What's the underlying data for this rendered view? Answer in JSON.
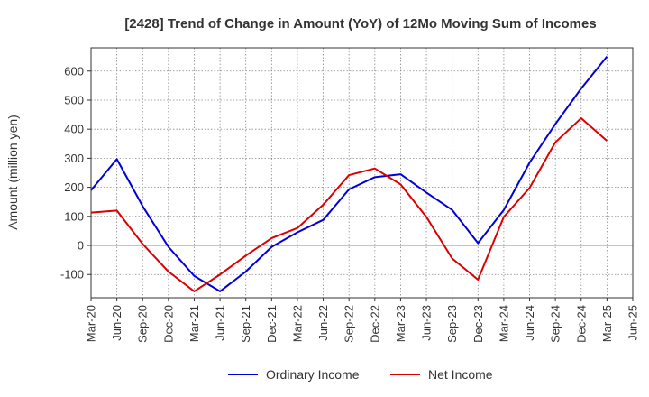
{
  "chart_data": {
    "type": "line",
    "title": "[2428]  Trend of Change in Amount (YoY) of 12Mo Moving Sum of Incomes",
    "xlabel": "",
    "ylabel": "Amount (million yen)",
    "ylim": [
      -180,
      680
    ],
    "yticks": [
      -100,
      0,
      100,
      200,
      300,
      400,
      500,
      600
    ],
    "grid": true,
    "legend_position": "bottom",
    "x": [
      "Mar-20",
      "Jun-20",
      "Sep-20",
      "Dec-20",
      "Mar-21",
      "Jun-21",
      "Sep-21",
      "Dec-21",
      "Mar-22",
      "Jun-22",
      "Sep-22",
      "Dec-22",
      "Mar-23",
      "Jun-23",
      "Sep-23",
      "Dec-23",
      "Mar-24",
      "Jun-24",
      "Sep-24",
      "Dec-24",
      "Mar-25",
      "Jun-25"
    ],
    "series": [
      {
        "name": "Ordinary Income",
        "color": "#0000dd",
        "values": [
          190,
          297,
          135,
          -5,
          -105,
          -158,
          -90,
          -5,
          45,
          88,
          193,
          235,
          245,
          182,
          122,
          8,
          122,
          285,
          418,
          540,
          650,
          null
        ]
      },
      {
        "name": "Net Income",
        "color": "#dd0000",
        "values": [
          113,
          120,
          5,
          -90,
          -158,
          -100,
          -35,
          25,
          60,
          140,
          242,
          265,
          210,
          98,
          -45,
          -118,
          98,
          198,
          355,
          438,
          360,
          null
        ]
      }
    ]
  }
}
